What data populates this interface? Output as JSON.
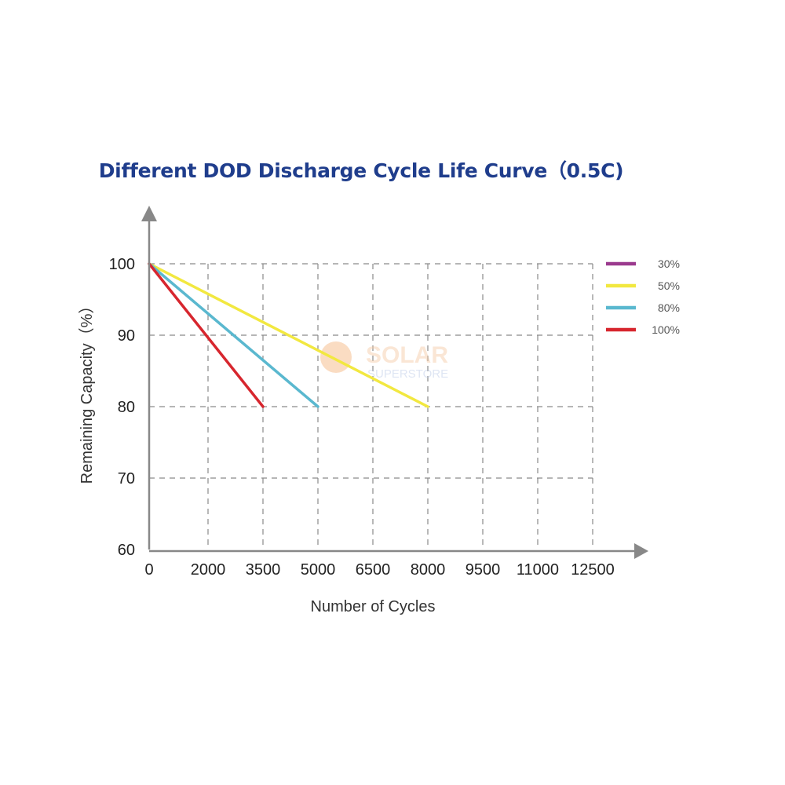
{
  "chart_data": {
    "type": "line",
    "title": "Different DOD Discharge Cycle Life Curve（0.5C)",
    "xlabel": "Number of Cycles",
    "ylabel": "Remaining Capacity（%）",
    "x_ticks": [
      "0",
      "2000",
      "3500",
      "5000",
      "6500",
      "8000",
      "9500",
      "11000",
      "12500"
    ],
    "y_ticks": [
      "60",
      "70",
      "80",
      "90",
      "100"
    ],
    "ylim": [
      60,
      100
    ],
    "grid": true,
    "legend_position": "right",
    "series": [
      {
        "name": "30%",
        "color": "#9b3a8e",
        "x": [],
        "y": []
      },
      {
        "name": "50%",
        "color": "#f2e840",
        "x": [
          0,
          8000
        ],
        "y": [
          100,
          80
        ]
      },
      {
        "name": "80%",
        "color": "#5ab8cf",
        "x": [
          0,
          5000
        ],
        "y": [
          100,
          80
        ]
      },
      {
        "name": "100%",
        "color": "#d7262e",
        "x": [
          0,
          3500
        ],
        "y": [
          100,
          80
        ]
      }
    ]
  },
  "watermark": {
    "line1": "SOLAR",
    "line2": "SUPERSTORE",
    "icon": "sun-icon"
  }
}
